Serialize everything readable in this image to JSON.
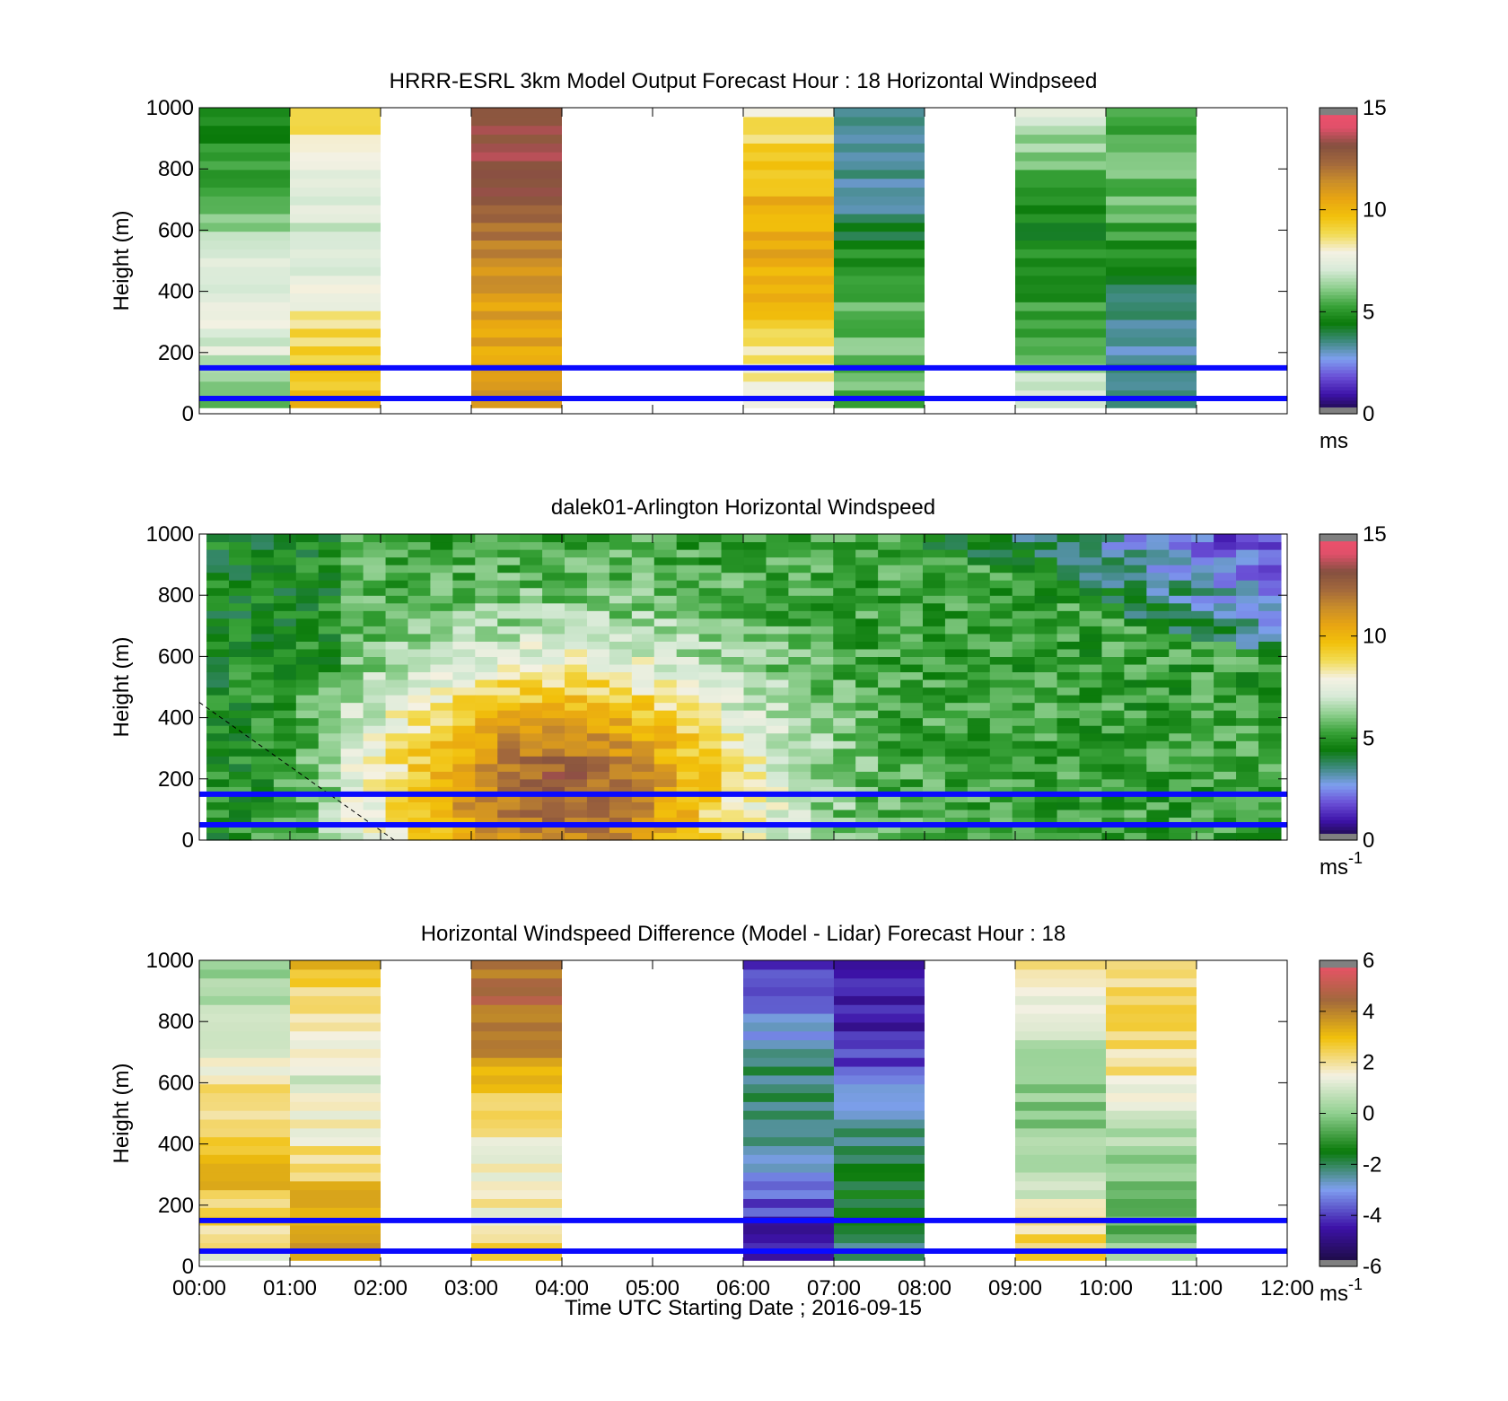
{
  "figure": {
    "xlabel": "Time UTC  Starting Date ; 2016-09-15",
    "x_tick_labels": [
      "00:00",
      "01:00",
      "02:00",
      "03:00",
      "04:00",
      "05:00",
      "06:00",
      "07:00",
      "08:00",
      "09:00",
      "10:00",
      "11:00",
      "12:00"
    ]
  },
  "colors": {
    "reference_line": "#0a0aff",
    "windspeed_colormap": [
      "#1a0b3a",
      "#3d12a8",
      "#6a4fd6",
      "#7f9ff0",
      "#3e8a7e",
      "#0a7a0a",
      "#3aa33a",
      "#8fcf8f",
      "#d7ead7",
      "#f4f1e3",
      "#f2dc55",
      "#f2c10b",
      "#e8a512",
      "#c98d2a",
      "#a2683c",
      "#855040",
      "#e0506a",
      "#f0506c"
    ],
    "difference_colormap": [
      "#1a0b3a",
      "#3d12a8",
      "#7f9ff0",
      "#0a7a0a",
      "#8fcf8f",
      "#f4f1e3",
      "#f2c10b",
      "#a2683c",
      "#f0506c"
    ]
  },
  "chart_data": [
    {
      "type": "heatmap",
      "title": "HRRR-ESRL 3km Model Output   Forecast Hour : 18 Horizontal Windpseed",
      "ylabel": "Height (m)",
      "x_tick_labels": [
        "00:00",
        "01:00",
        "02:00",
        "03:00",
        "04:00",
        "05:00",
        "06:00",
        "07:00",
        "08:00",
        "09:00",
        "10:00",
        "11:00",
        "12:00"
      ],
      "xlim": [
        0,
        12
      ],
      "ylim": [
        0,
        1000
      ],
      "y_ticks": [
        0,
        200,
        400,
        600,
        800,
        1000
      ],
      "colorbar": {
        "range": [
          0,
          15
        ],
        "ticks": [
          0,
          5,
          10,
          15
        ],
        "unit": "ms"
      },
      "reference_lines_m": [
        150,
        50
      ],
      "columns": [
        {
          "x": 0.5,
          "value": 6.0
        },
        {
          "x": 1.5,
          "value": 8.5
        },
        {
          "x": 3.5,
          "value": 12.0
        },
        {
          "x": 6.5,
          "value": 9.0
        },
        {
          "x": 7.5,
          "value": 4.5
        },
        {
          "x": 9.5,
          "value": 6.0
        },
        {
          "x": 10.5,
          "value": 4.5
        }
      ]
    },
    {
      "type": "heatmap",
      "title": "dalek01-Arlington  Horizontal Windspeed",
      "ylabel": "Height (m)",
      "x_tick_labels": [
        "00:00",
        "01:00",
        "02:00",
        "03:00",
        "04:00",
        "05:00",
        "06:00",
        "07:00",
        "08:00",
        "09:00",
        "10:00",
        "11:00",
        "12:00"
      ],
      "xlim": [
        0,
        12
      ],
      "ylim": [
        0,
        1000
      ],
      "y_ticks": [
        0,
        200,
        400,
        600,
        800,
        1000
      ],
      "colorbar": {
        "range": [
          0,
          15
        ],
        "ticks": [
          0,
          5,
          10,
          15
        ],
        "unit": "ms",
        "unit_sup": "-1"
      },
      "reference_lines_m": [
        150,
        50
      ],
      "dashed_line": {
        "x": [
          0,
          2.15
        ],
        "y": [
          450,
          0
        ]
      }
    },
    {
      "type": "heatmap",
      "title": "Horizontal Windspeed Difference (Model - Lidar) Forecast Hour : 18",
      "ylabel": "Height (m)",
      "x_tick_labels": [
        "00:00",
        "01:00",
        "02:00",
        "03:00",
        "04:00",
        "05:00",
        "06:00",
        "07:00",
        "08:00",
        "09:00",
        "10:00",
        "11:00",
        "12:00"
      ],
      "xlim": [
        0,
        12
      ],
      "ylim": [
        0,
        1000
      ],
      "y_ticks": [
        0,
        200,
        400,
        600,
        800,
        1000
      ],
      "colorbar": {
        "range": [
          -6,
          6
        ],
        "ticks": [
          -6,
          -4,
          -2,
          0,
          2,
          4,
          6
        ],
        "unit": "ms",
        "unit_sup": "-1"
      },
      "reference_lines_m": [
        150,
        50
      ],
      "columns": [
        {
          "x": 0.5,
          "value": 1.5
        },
        {
          "x": 1.5,
          "value": 2.5
        },
        {
          "x": 3.5,
          "value": 3.0
        },
        {
          "x": 6.5,
          "value": -3.5
        },
        {
          "x": 7.5,
          "value": -3.0
        },
        {
          "x": 9.5,
          "value": 1.5
        },
        {
          "x": 10.5,
          "value": 1.0
        }
      ]
    }
  ]
}
